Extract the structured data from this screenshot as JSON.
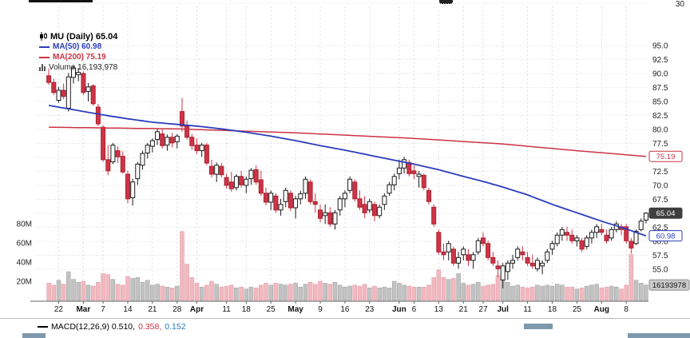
{
  "overflow": {
    "top_rsi_label": "30"
  },
  "legend": {
    "symbol": "MU (Daily) 65.04",
    "ma50": "MA(50) 60.98",
    "ma200": "MA(200) 75.19",
    "volume": "Volume 16,193,978"
  },
  "macd": {
    "main": "MACD(12,26,9) 0.510,",
    "signal": "0.358,",
    "hist": "0.152"
  },
  "colors": {
    "up_fill": "#ffffff",
    "up_border": "#1a1a1a",
    "down_fill": "#cf3347",
    "down_border": "#a8222f",
    "vol_up": "#c2c2c2",
    "vol_up_border": "#9e9e9e",
    "vol_down": "#f2b8bf",
    "vol_down_border": "#dd9aa4",
    "ma50": "#2b3dbd",
    "ma200": "#cc3344",
    "grid": "#dcdcdc",
    "axis_text": "#222222",
    "axis_line": "#666666",
    "last_box_bg": "#3f3f3f",
    "vol_box_bg": "#c9c9c9"
  },
  "chart_data": {
    "type": "candlestick",
    "title": "MU (Daily)",
    "last_price": 65.04,
    "ma50_value": 60.98,
    "ma200_value": 75.19,
    "last_volume_text": "16,193,978",
    "ylim": [
      55,
      95
    ],
    "volume_ylim_millions": [
      0,
      80
    ],
    "grid": true,
    "y_ticks": [
      {
        "v": 95,
        "label": "95.0"
      },
      {
        "v": 92.5,
        "label": "92.5"
      },
      {
        "v": 90,
        "label": "90.0"
      },
      {
        "v": 87.5,
        "label": "87.5"
      },
      {
        "v": 85,
        "label": "85.0"
      },
      {
        "v": 82.5,
        "label": "82.5"
      },
      {
        "v": 80,
        "label": "80.0"
      },
      {
        "v": 77.5,
        "label": "77.5"
      },
      {
        "v": 75,
        "label": "75.0"
      },
      {
        "v": 72.5,
        "label": "72.5"
      },
      {
        "v": 70,
        "label": "70.0"
      },
      {
        "v": 67.5,
        "label": "67.5"
      },
      {
        "v": 65,
        "label": "65.0"
      },
      {
        "v": 62.5,
        "label": "62.5"
      },
      {
        "v": 60,
        "label": "60.0"
      },
      {
        "v": 57.5,
        "label": "57.5"
      },
      {
        "v": 55,
        "label": "55.0"
      }
    ],
    "volume_ticks": [
      {
        "v": 80,
        "label": "80M"
      },
      {
        "v": 60,
        "label": "60M"
      },
      {
        "v": 40,
        "label": "40M"
      },
      {
        "v": 20,
        "label": "20M"
      }
    ],
    "x_ticks": [
      {
        "i": 2,
        "label": "22",
        "bold": false
      },
      {
        "i": 7,
        "label": "Mar",
        "bold": true
      },
      {
        "i": 11,
        "label": "7",
        "bold": false
      },
      {
        "i": 16,
        "label": "14",
        "bold": false
      },
      {
        "i": 21,
        "label": "21",
        "bold": false
      },
      {
        "i": 26,
        "label": "28",
        "bold": false
      },
      {
        "i": 30,
        "label": "Apr",
        "bold": true
      },
      {
        "i": 36,
        "label": "11",
        "bold": false
      },
      {
        "i": 40,
        "label": "18",
        "bold": false
      },
      {
        "i": 45,
        "label": "25",
        "bold": false
      },
      {
        "i": 50,
        "label": "May",
        "bold": true
      },
      {
        "i": 55,
        "label": "9",
        "bold": false
      },
      {
        "i": 60,
        "label": "16",
        "bold": false
      },
      {
        "i": 65,
        "label": "23",
        "bold": false
      },
      {
        "i": 71,
        "label": "Jun",
        "bold": true
      },
      {
        "i": 74,
        "label": "6",
        "bold": false
      },
      {
        "i": 79,
        "label": "13",
        "bold": false
      },
      {
        "i": 84,
        "label": "21",
        "bold": false
      },
      {
        "i": 88,
        "label": "27",
        "bold": false
      },
      {
        "i": 92,
        "label": "Jul",
        "bold": true
      },
      {
        "i": 97,
        "label": "11",
        "bold": false
      },
      {
        "i": 102,
        "label": "18",
        "bold": false
      },
      {
        "i": 107,
        "label": "25",
        "bold": false
      },
      {
        "i": 112,
        "label": "Aug",
        "bold": true
      },
      {
        "i": 117,
        "label": "8",
        "bold": false
      }
    ],
    "candles": [
      [
        "2/17",
        89.6,
        90.9,
        88.0,
        88.4,
        18
      ],
      [
        "2/18",
        88.4,
        89.1,
        86.2,
        86.6,
        16
      ],
      [
        "2/22",
        85.2,
        87.6,
        84.8,
        87.0,
        21
      ],
      [
        "2/23",
        87.0,
        88.2,
        85.4,
        85.9,
        17
      ],
      [
        "2/24",
        83.8,
        90.1,
        83.2,
        89.4,
        30
      ],
      [
        "2/25",
        89.3,
        91.4,
        88.2,
        91.0,
        22
      ],
      [
        "2/28",
        89.8,
        91.0,
        88.6,
        90.2,
        19
      ],
      [
        "3/1",
        90.0,
        90.4,
        86.2,
        86.6,
        20
      ],
      [
        "3/2",
        86.8,
        88.3,
        85.0,
        87.6,
        16
      ],
      [
        "3/3",
        87.8,
        88.1,
        84.2,
        84.6,
        15
      ],
      [
        "3/4",
        84.0,
        84.6,
        80.6,
        81.0,
        19
      ],
      [
        "3/7",
        80.4,
        80.8,
        74.2,
        74.6,
        28
      ],
      [
        "3/8",
        74.6,
        77.2,
        71.8,
        72.6,
        27
      ],
      [
        "3/9",
        74.2,
        77.6,
        73.8,
        77.2,
        22
      ],
      [
        "3/10",
        76.2,
        77.0,
        74.0,
        75.1,
        17
      ],
      [
        "3/11",
        75.2,
        76.1,
        72.1,
        72.4,
        16
      ],
      [
        "3/14",
        72.0,
        72.6,
        66.8,
        67.6,
        25
      ],
      [
        "3/15",
        67.8,
        71.2,
        66.4,
        70.6,
        23
      ],
      [
        "3/16",
        71.2,
        74.2,
        70.1,
        73.8,
        24
      ],
      [
        "3/17",
        73.6,
        76.2,
        72.8,
        75.7,
        19
      ],
      [
        "3/18",
        75.8,
        77.6,
        74.8,
        77.2,
        21
      ],
      [
        "3/21",
        77.0,
        78.4,
        75.9,
        78.0,
        16
      ],
      [
        "3/22",
        78.2,
        80.1,
        77.2,
        79.6,
        17
      ],
      [
        "3/23",
        79.2,
        80.0,
        76.6,
        77.1,
        15
      ],
      [
        "3/24",
        77.2,
        79.1,
        76.2,
        78.6,
        14
      ],
      [
        "3/25",
        78.6,
        79.4,
        76.8,
        77.6,
        13
      ],
      [
        "3/28",
        77.8,
        79.2,
        76.6,
        78.8,
        15
      ],
      [
        "3/29",
        83.2,
        85.6,
        79.6,
        80.6,
        72
      ],
      [
        "3/30",
        80.6,
        81.6,
        78.2,
        78.6,
        38
      ],
      [
        "3/31",
        78.6,
        79.2,
        76.4,
        77.1,
        24
      ],
      [
        "4/1",
        77.2,
        78.4,
        75.6,
        76.2,
        18
      ],
      [
        "4/4",
        76.2,
        77.6,
        75.1,
        77.2,
        14
      ],
      [
        "4/5",
        77.2,
        77.6,
        73.6,
        74.0,
        16
      ],
      [
        "4/6",
        73.4,
        74.6,
        71.4,
        72.0,
        20
      ],
      [
        "4/7",
        72.0,
        74.1,
        70.6,
        73.6,
        17
      ],
      [
        "4/8",
        73.4,
        74.0,
        71.4,
        71.9,
        14
      ],
      [
        "4/11",
        71.4,
        72.1,
        69.4,
        70.0,
        15
      ],
      [
        "4/12",
        70.6,
        72.4,
        68.9,
        69.4,
        16
      ],
      [
        "4/13",
        69.6,
        72.0,
        69.1,
        71.6,
        13
      ],
      [
        "4/14",
        71.6,
        72.6,
        69.6,
        70.1,
        14
      ],
      [
        "4/18",
        70.0,
        71.6,
        68.6,
        71.1,
        12
      ],
      [
        "4/19",
        71.2,
        73.1,
        70.1,
        72.7,
        14
      ],
      [
        "4/20",
        72.8,
        73.6,
        70.1,
        70.6,
        13
      ],
      [
        "4/21",
        71.0,
        72.6,
        68.1,
        68.6,
        16
      ],
      [
        "4/22",
        68.6,
        69.6,
        66.4,
        67.0,
        18
      ],
      [
        "4/25",
        67.0,
        69.1,
        65.6,
        68.6,
        16
      ],
      [
        "4/26",
        68.1,
        68.6,
        65.1,
        65.6,
        18
      ],
      [
        "4/27",
        65.6,
        67.6,
        64.6,
        66.6,
        17
      ],
      [
        "4/28",
        67.1,
        69.6,
        66.1,
        69.1,
        16
      ],
      [
        "4/29",
        68.6,
        69.1,
        65.4,
        66.0,
        17
      ],
      [
        "5/2",
        66.0,
        68.1,
        64.1,
        67.6,
        18
      ],
      [
        "5/3",
        67.6,
        69.0,
        66.6,
        68.5,
        14
      ],
      [
        "5/4",
        68.6,
        71.6,
        67.6,
        71.1,
        17
      ],
      [
        "5/5",
        70.6,
        71.1,
        66.6,
        67.1,
        19
      ],
      [
        "5/6",
        67.1,
        68.6,
        65.1,
        66.6,
        17
      ],
      [
        "5/9",
        65.6,
        66.6,
        63.4,
        64.1,
        20
      ],
      [
        "5/10",
        64.6,
        66.6,
        63.1,
        65.1,
        18
      ],
      [
        "5/11",
        65.1,
        66.1,
        62.6,
        63.1,
        17
      ],
      [
        "5/12",
        63.1,
        65.6,
        62.1,
        65.1,
        19
      ],
      [
        "5/13",
        65.6,
        68.1,
        64.6,
        67.6,
        16
      ],
      [
        "5/16",
        67.6,
        69.1,
        66.1,
        68.6,
        14
      ],
      [
        "5/17",
        69.1,
        71.6,
        68.6,
        71.1,
        15
      ],
      [
        "5/18",
        70.6,
        71.1,
        67.1,
        67.6,
        16
      ],
      [
        "5/19",
        67.6,
        69.1,
        65.6,
        66.1,
        15
      ],
      [
        "5/20",
        66.6,
        68.1,
        64.1,
        65.1,
        17
      ],
      [
        "5/23",
        65.6,
        67.6,
        65.1,
        67.1,
        13
      ],
      [
        "5/24",
        66.6,
        67.1,
        63.6,
        64.6,
        15
      ],
      [
        "5/25",
        64.6,
        66.6,
        64.1,
        66.1,
        13
      ],
      [
        "5/26",
        66.6,
        68.6,
        65.6,
        68.1,
        14
      ],
      [
        "5/27",
        68.6,
        70.6,
        68.1,
        70.1,
        13
      ],
      [
        "5/31",
        70.1,
        72.1,
        69.1,
        71.6,
        20
      ],
      [
        "6/1",
        72.1,
        74.6,
        71.1,
        73.1,
        18
      ],
      [
        "6/2",
        73.1,
        75.1,
        72.1,
        74.6,
        16
      ],
      [
        "6/3",
        74.1,
        74.6,
        71.6,
        72.1,
        15
      ],
      [
        "6/6",
        72.6,
        73.6,
        71.1,
        72.1,
        14
      ],
      [
        "6/7",
        71.6,
        72.6,
        69.6,
        72.0,
        14
      ],
      [
        "6/8",
        71.8,
        72.1,
        69.1,
        69.6,
        14
      ],
      [
        "6/9",
        69.1,
        69.6,
        66.6,
        67.1,
        16
      ],
      [
        "6/10",
        66.1,
        66.6,
        62.6,
        63.1,
        24
      ],
      [
        "6/13",
        61.6,
        62.1,
        57.6,
        58.1,
        32
      ],
      [
        "6/14",
        58.1,
        59.6,
        56.6,
        57.6,
        24
      ],
      [
        "6/15",
        58.1,
        60.1,
        56.6,
        59.6,
        22
      ],
      [
        "6/16",
        58.6,
        59.1,
        55.6,
        56.1,
        23
      ],
      [
        "6/17",
        56.1,
        58.1,
        55.1,
        57.1,
        28
      ],
      [
        "6/21",
        57.6,
        59.1,
        56.6,
        58.6,
        18
      ],
      [
        "6/22",
        57.6,
        58.6,
        55.6,
        56.6,
        16
      ],
      [
        "6/23",
        56.6,
        58.1,
        55.1,
        57.6,
        17
      ],
      [
        "6/24",
        58.1,
        60.6,
        57.6,
        60.1,
        19
      ],
      [
        "6/27",
        60.6,
        61.6,
        59.1,
        59.6,
        15
      ],
      [
        "6/28",
        59.6,
        60.1,
        56.6,
        57.1,
        16
      ],
      [
        "6/29",
        57.1,
        58.1,
        55.6,
        56.1,
        17
      ],
      [
        "6/30",
        55.6,
        56.6,
        53.6,
        55.1,
        26
      ],
      [
        "7/1",
        53.1,
        56.1,
        51.6,
        55.6,
        30
      ],
      [
        "7/5",
        54.6,
        56.6,
        53.1,
        56.1,
        19
      ],
      [
        "7/6",
        56.1,
        57.6,
        55.1,
        56.6,
        15
      ],
      [
        "7/7",
        57.1,
        59.1,
        56.6,
        58.6,
        16
      ],
      [
        "7/8",
        58.1,
        59.1,
        56.6,
        57.6,
        14
      ],
      [
        "7/11",
        57.1,
        58.1,
        55.6,
        56.1,
        13
      ],
      [
        "7/12",
        56.1,
        57.6,
        55.1,
        55.6,
        14
      ],
      [
        "7/13",
        55.1,
        57.1,
        54.6,
        56.6,
        16
      ],
      [
        "7/14",
        55.6,
        56.6,
        54.1,
        56.1,
        15
      ],
      [
        "7/15",
        56.6,
        58.6,
        56.1,
        58.1,
        16
      ],
      [
        "7/18",
        58.6,
        60.1,
        57.6,
        59.6,
        15
      ],
      [
        "7/19",
        59.6,
        61.6,
        59.1,
        61.1,
        17
      ],
      [
        "7/20",
        61.1,
        62.6,
        60.1,
        62.1,
        16
      ],
      [
        "7/21",
        61.6,
        62.6,
        60.1,
        61.1,
        14
      ],
      [
        "7/22",
        61.1,
        62.1,
        59.6,
        60.1,
        14
      ],
      [
        "7/25",
        60.1,
        61.1,
        59.1,
        60.6,
        12
      ],
      [
        "7/26",
        60.1,
        60.6,
        58.1,
        58.6,
        13
      ],
      [
        "7/27",
        59.1,
        61.1,
        58.6,
        60.6,
        15
      ],
      [
        "7/28",
        60.6,
        62.1,
        59.6,
        61.6,
        16
      ],
      [
        "7/29",
        61.6,
        63.1,
        60.6,
        62.6,
        17
      ],
      [
        "8/1",
        62.1,
        63.1,
        61.1,
        61.6,
        13
      ],
      [
        "8/2",
        61.1,
        62.1,
        59.6,
        60.1,
        14
      ],
      [
        "8/3",
        60.6,
        62.6,
        60.1,
        62.1,
        15
      ],
      [
        "8/4",
        62.1,
        63.6,
        61.6,
        63.1,
        14
      ],
      [
        "8/5",
        62.6,
        63.1,
        61.1,
        62.1,
        12
      ],
      [
        "8/8",
        62.6,
        63.1,
        59.6,
        60.1,
        16
      ],
      [
        "8/9",
        60.0,
        60.6,
        57.8,
        58.8,
        48
      ],
      [
        "8/10",
        59.6,
        62.1,
        59.3,
        61.8,
        21
      ],
      [
        "8/11",
        62.1,
        64.1,
        61.8,
        63.6,
        18
      ],
      [
        "8/12",
        63.8,
        65.2,
        63.2,
        65.04,
        16.19
      ]
    ],
    "ma50_points": [
      [
        0,
        84.3
      ],
      [
        11,
        82.6
      ],
      [
        16,
        81.9
      ],
      [
        21,
        81.3
      ],
      [
        26,
        80.9
      ],
      [
        30,
        80.6
      ],
      [
        35,
        80.1
      ],
      [
        40,
        79.5
      ],
      [
        45,
        78.8
      ],
      [
        50,
        78.0
      ],
      [
        55,
        77.1
      ],
      [
        60,
        76.3
      ],
      [
        65,
        75.4
      ],
      [
        70,
        74.5
      ],
      [
        74,
        73.8
      ],
      [
        79,
        72.8
      ],
      [
        84,
        71.6
      ],
      [
        88,
        70.7
      ],
      [
        92,
        69.7
      ],
      [
        97,
        68.3
      ],
      [
        102,
        66.6
      ],
      [
        107,
        65.1
      ],
      [
        112,
        63.6
      ],
      [
        117,
        62.2
      ],
      [
        121,
        60.98
      ]
    ],
    "ma200_points": [
      [
        0,
        80.4
      ],
      [
        26,
        80.1
      ],
      [
        50,
        79.4
      ],
      [
        74,
        78.4
      ],
      [
        92,
        77.4
      ],
      [
        107,
        76.2
      ],
      [
        121,
        75.19
      ]
    ],
    "axis_callouts": [
      {
        "text": "75.19",
        "price": 75.19,
        "style": "ma200"
      },
      {
        "text": "65.04",
        "price": 65.04,
        "style": "last"
      },
      {
        "text": "60.98",
        "price": 60.98,
        "style": "ma50"
      },
      {
        "text": "16193978",
        "volume": 16.19,
        "style": "volume"
      }
    ]
  }
}
